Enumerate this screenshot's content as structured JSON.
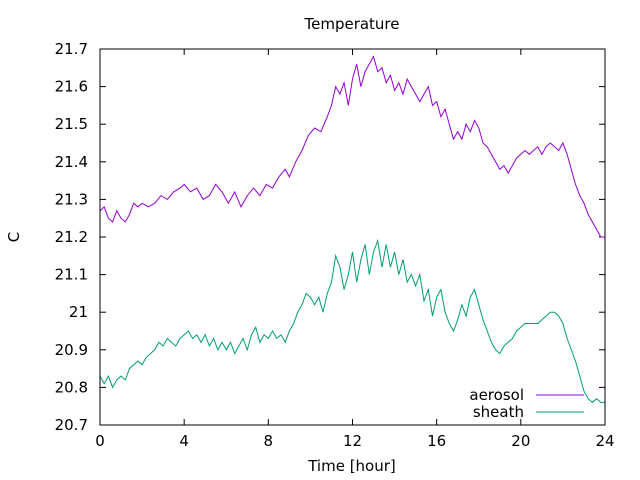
{
  "chart_data": {
    "type": "line",
    "title": "Temperature",
    "xlabel": "Time [hour]",
    "ylabel": "C",
    "xlim": [
      0,
      24
    ],
    "ylim": [
      20.7,
      21.7
    ],
    "x_ticks": [
      0,
      4,
      8,
      12,
      16,
      20,
      24
    ],
    "x_tick_labels": [
      "0",
      "4",
      "8",
      "12",
      "16",
      "20",
      "24"
    ],
    "y_ticks": [
      20.7,
      20.8,
      20.9,
      21.0,
      21.1,
      21.2,
      21.3,
      21.4,
      21.5,
      21.6,
      21.7
    ],
    "y_tick_labels": [
      "20.7",
      "20.8",
      "20.9",
      "21",
      "21.1",
      "21.2",
      "21.3",
      "21.4",
      "21.5",
      "21.6",
      "21.7"
    ],
    "grid": false,
    "legend_position": "bottom-right",
    "series": [
      {
        "name": "aerosol",
        "color": "#9400d3",
        "points": [
          [
            0.0,
            21.27
          ],
          [
            0.2,
            21.28
          ],
          [
            0.4,
            21.25
          ],
          [
            0.6,
            21.24
          ],
          [
            0.8,
            21.27
          ],
          [
            1.0,
            21.25
          ],
          [
            1.2,
            21.24
          ],
          [
            1.4,
            21.26
          ],
          [
            1.6,
            21.29
          ],
          [
            1.8,
            21.28
          ],
          [
            2.0,
            21.29
          ],
          [
            2.3,
            21.28
          ],
          [
            2.6,
            21.29
          ],
          [
            2.9,
            21.31
          ],
          [
            3.2,
            21.3
          ],
          [
            3.5,
            21.32
          ],
          [
            3.8,
            21.33
          ],
          [
            4.0,
            21.34
          ],
          [
            4.3,
            21.32
          ],
          [
            4.6,
            21.33
          ],
          [
            4.9,
            21.3
          ],
          [
            5.2,
            21.31
          ],
          [
            5.5,
            21.34
          ],
          [
            5.8,
            21.32
          ],
          [
            6.1,
            21.29
          ],
          [
            6.4,
            21.32
          ],
          [
            6.7,
            21.28
          ],
          [
            7.0,
            21.31
          ],
          [
            7.3,
            21.33
          ],
          [
            7.6,
            21.31
          ],
          [
            7.9,
            21.34
          ],
          [
            8.2,
            21.33
          ],
          [
            8.5,
            21.36
          ],
          [
            8.8,
            21.38
          ],
          [
            9.0,
            21.36
          ],
          [
            9.3,
            21.4
          ],
          [
            9.6,
            21.43
          ],
          [
            9.9,
            21.47
          ],
          [
            10.2,
            21.49
          ],
          [
            10.5,
            21.48
          ],
          [
            10.8,
            21.52
          ],
          [
            11.0,
            21.55
          ],
          [
            11.2,
            21.6
          ],
          [
            11.4,
            21.58
          ],
          [
            11.6,
            21.61
          ],
          [
            11.8,
            21.55
          ],
          [
            12.0,
            21.62
          ],
          [
            12.2,
            21.66
          ],
          [
            12.4,
            21.6
          ],
          [
            12.6,
            21.64
          ],
          [
            12.8,
            21.66
          ],
          [
            13.0,
            21.68
          ],
          [
            13.2,
            21.64
          ],
          [
            13.4,
            21.65
          ],
          [
            13.6,
            21.61
          ],
          [
            13.8,
            21.63
          ],
          [
            14.0,
            21.59
          ],
          [
            14.2,
            21.61
          ],
          [
            14.4,
            21.58
          ],
          [
            14.6,
            21.62
          ],
          [
            14.8,
            21.6
          ],
          [
            15.0,
            21.58
          ],
          [
            15.2,
            21.56
          ],
          [
            15.4,
            21.58
          ],
          [
            15.6,
            21.6
          ],
          [
            15.8,
            21.55
          ],
          [
            16.0,
            21.56
          ],
          [
            16.2,
            21.52
          ],
          [
            16.4,
            21.54
          ],
          [
            16.6,
            21.5
          ],
          [
            16.8,
            21.46
          ],
          [
            17.0,
            21.48
          ],
          [
            17.2,
            21.46
          ],
          [
            17.4,
            21.5
          ],
          [
            17.6,
            21.48
          ],
          [
            17.8,
            21.51
          ],
          [
            18.0,
            21.49
          ],
          [
            18.2,
            21.45
          ],
          [
            18.4,
            21.44
          ],
          [
            18.6,
            21.42
          ],
          [
            18.8,
            21.4
          ],
          [
            19.0,
            21.38
          ],
          [
            19.2,
            21.39
          ],
          [
            19.4,
            21.37
          ],
          [
            19.6,
            21.39
          ],
          [
            19.8,
            21.41
          ],
          [
            20.0,
            21.42
          ],
          [
            20.2,
            21.43
          ],
          [
            20.4,
            21.42
          ],
          [
            20.6,
            21.43
          ],
          [
            20.8,
            21.44
          ],
          [
            21.0,
            21.42
          ],
          [
            21.2,
            21.44
          ],
          [
            21.4,
            21.45
          ],
          [
            21.6,
            21.44
          ],
          [
            21.8,
            21.43
          ],
          [
            22.0,
            21.45
          ],
          [
            22.2,
            21.42
          ],
          [
            22.4,
            21.38
          ],
          [
            22.6,
            21.34
          ],
          [
            22.8,
            21.31
          ],
          [
            23.0,
            21.29
          ],
          [
            23.2,
            21.26
          ],
          [
            23.4,
            21.24
          ],
          [
            23.6,
            21.22
          ],
          [
            23.8,
            21.2
          ],
          [
            24.0,
            21.2
          ]
        ]
      },
      {
        "name": "sheath",
        "color": "#009e73",
        "points": [
          [
            0.0,
            20.83
          ],
          [
            0.2,
            20.81
          ],
          [
            0.4,
            20.83
          ],
          [
            0.6,
            20.8
          ],
          [
            0.8,
            20.82
          ],
          [
            1.0,
            20.83
          ],
          [
            1.2,
            20.82
          ],
          [
            1.4,
            20.85
          ],
          [
            1.6,
            20.86
          ],
          [
            1.8,
            20.87
          ],
          [
            2.0,
            20.86
          ],
          [
            2.2,
            20.88
          ],
          [
            2.4,
            20.89
          ],
          [
            2.6,
            20.9
          ],
          [
            2.8,
            20.92
          ],
          [
            3.0,
            20.91
          ],
          [
            3.2,
            20.93
          ],
          [
            3.4,
            20.92
          ],
          [
            3.6,
            20.91
          ],
          [
            3.8,
            20.93
          ],
          [
            4.0,
            20.94
          ],
          [
            4.2,
            20.95
          ],
          [
            4.4,
            20.93
          ],
          [
            4.6,
            20.94
          ],
          [
            4.8,
            20.92
          ],
          [
            5.0,
            20.94
          ],
          [
            5.2,
            20.91
          ],
          [
            5.4,
            20.93
          ],
          [
            5.6,
            20.9
          ],
          [
            5.8,
            20.92
          ],
          [
            6.0,
            20.9
          ],
          [
            6.2,
            20.92
          ],
          [
            6.4,
            20.89
          ],
          [
            6.6,
            20.91
          ],
          [
            6.8,
            20.93
          ],
          [
            7.0,
            20.9
          ],
          [
            7.2,
            20.94
          ],
          [
            7.4,
            20.96
          ],
          [
            7.6,
            20.92
          ],
          [
            7.8,
            20.94
          ],
          [
            8.0,
            20.93
          ],
          [
            8.2,
            20.95
          ],
          [
            8.4,
            20.93
          ],
          [
            8.6,
            20.94
          ],
          [
            8.8,
            20.92
          ],
          [
            9.0,
            20.95
          ],
          [
            9.2,
            20.97
          ],
          [
            9.4,
            21.0
          ],
          [
            9.6,
            21.02
          ],
          [
            9.8,
            21.05
          ],
          [
            10.0,
            21.04
          ],
          [
            10.2,
            21.02
          ],
          [
            10.4,
            21.04
          ],
          [
            10.6,
            21.0
          ],
          [
            10.8,
            21.05
          ],
          [
            11.0,
            21.08
          ],
          [
            11.2,
            21.15
          ],
          [
            11.4,
            21.12
          ],
          [
            11.6,
            21.06
          ],
          [
            11.8,
            21.1
          ],
          [
            12.0,
            21.16
          ],
          [
            12.2,
            21.08
          ],
          [
            12.4,
            21.14
          ],
          [
            12.6,
            21.18
          ],
          [
            12.8,
            21.1
          ],
          [
            13.0,
            21.16
          ],
          [
            13.2,
            21.19
          ],
          [
            13.4,
            21.12
          ],
          [
            13.6,
            21.18
          ],
          [
            13.8,
            21.12
          ],
          [
            14.0,
            21.16
          ],
          [
            14.2,
            21.1
          ],
          [
            14.4,
            21.14
          ],
          [
            14.6,
            21.08
          ],
          [
            14.8,
            21.1
          ],
          [
            15.0,
            21.07
          ],
          [
            15.2,
            21.1
          ],
          [
            15.4,
            21.03
          ],
          [
            15.6,
            21.06
          ],
          [
            15.8,
            20.99
          ],
          [
            16.0,
            21.04
          ],
          [
            16.2,
            21.06
          ],
          [
            16.4,
            21.0
          ],
          [
            16.6,
            20.97
          ],
          [
            16.8,
            20.95
          ],
          [
            17.0,
            20.98
          ],
          [
            17.2,
            21.02
          ],
          [
            17.4,
            20.99
          ],
          [
            17.6,
            21.04
          ],
          [
            17.8,
            21.06
          ],
          [
            18.0,
            21.02
          ],
          [
            18.2,
            20.98
          ],
          [
            18.4,
            20.95
          ],
          [
            18.6,
            20.92
          ],
          [
            18.8,
            20.9
          ],
          [
            19.0,
            20.89
          ],
          [
            19.2,
            20.91
          ],
          [
            19.4,
            20.92
          ],
          [
            19.6,
            20.93
          ],
          [
            19.8,
            20.95
          ],
          [
            20.0,
            20.96
          ],
          [
            20.2,
            20.97
          ],
          [
            20.4,
            20.97
          ],
          [
            20.6,
            20.97
          ],
          [
            20.8,
            20.97
          ],
          [
            21.0,
            20.98
          ],
          [
            21.2,
            20.99
          ],
          [
            21.4,
            21.0
          ],
          [
            21.6,
            21.0
          ],
          [
            21.8,
            20.99
          ],
          [
            22.0,
            20.97
          ],
          [
            22.2,
            20.93
          ],
          [
            22.4,
            20.9
          ],
          [
            22.6,
            20.87
          ],
          [
            22.8,
            20.83
          ],
          [
            23.0,
            20.79
          ],
          [
            23.2,
            20.77
          ],
          [
            23.4,
            20.76
          ],
          [
            23.6,
            20.77
          ],
          [
            23.8,
            20.76
          ],
          [
            24.0,
            20.76
          ]
        ]
      }
    ]
  }
}
